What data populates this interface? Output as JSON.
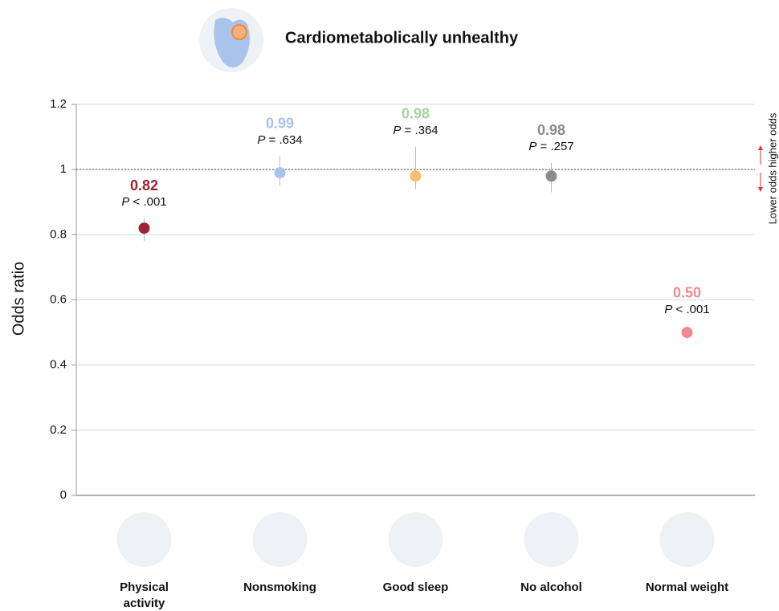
{
  "chart_data": {
    "type": "dot_errorbar",
    "title": "Cardiometabolically unhealthy",
    "ylabel": "Odds ratio",
    "side_label": "Lower odds higher odds",
    "categories": [
      "Physical activity",
      "Nonsmoking",
      "Good sleep",
      "No alcohol",
      "Normal weight"
    ],
    "values": [
      0.82,
      0.99,
      0.98,
      0.98,
      0.5
    ],
    "value_labels": [
      "0.82",
      "0.99",
      "0.98",
      "0.98",
      "0.50"
    ],
    "ci_lower": [
      0.78,
      0.95,
      0.94,
      0.93,
      0.48
    ],
    "ci_upper": [
      0.85,
      1.04,
      1.07,
      1.02,
      0.52
    ],
    "p_labels": [
      "P < .001",
      "P = .634",
      "P = .364",
      "P = .257",
      "P < .001"
    ],
    "colors": [
      "#9b2335",
      "#a9c4ea",
      "#f5c26b",
      "#8c8c8c",
      "#f08a8f"
    ],
    "label_colors": [
      "#9b2335",
      "#a9c4ea",
      "#a8d5a2",
      "#8c8c8c",
      "#f08a8f"
    ],
    "reference": 1,
    "ylim": [
      0,
      1.2
    ],
    "yticks": [
      0,
      0.2,
      0.4,
      0.6,
      0.8,
      1,
      1.2
    ],
    "grid": true
  }
}
